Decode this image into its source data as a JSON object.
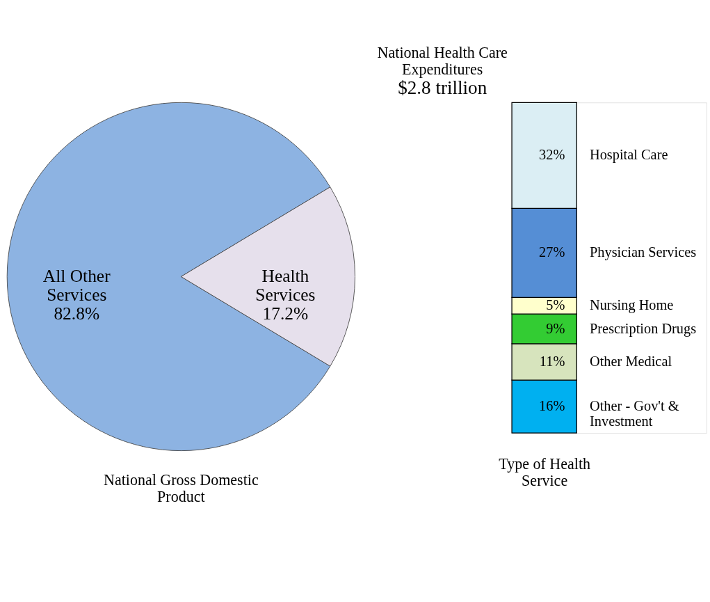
{
  "chart_data": [
    {
      "type": "pie",
      "xlabel": "National Gross Domestic Product",
      "categories": [
        "All Other Services",
        "Health Services"
      ],
      "values": [
        82.8,
        17.2
      ],
      "value_labels": [
        "82.8%",
        "17.2%"
      ],
      "colors": [
        "#8db3e2",
        "#e6e0ec"
      ],
      "legend": false
    },
    {
      "type": "bar",
      "title": "National Health Care Expenditures",
      "subtitle": "$2.8 trillion",
      "xlabel": "Type of Health Service",
      "stacked": true,
      "categories": [
        null
      ],
      "legend": false,
      "series": [
        {
          "name": "Other - Gov't & Investment",
          "color": "#00b0f0",
          "values": [
            16
          ],
          "value_labels": [
            "16%"
          ]
        },
        {
          "name": "Other Medical",
          "color": "#d7e4bd",
          "values": [
            11
          ],
          "value_labels": [
            "11%"
          ]
        },
        {
          "name": "Prescription Drugs",
          "color": "#33cc33",
          "values": [
            9
          ],
          "value_labels": [
            "9%"
          ]
        },
        {
          "name": "Nursing Home",
          "color": "#ffffcc",
          "values": [
            5
          ],
          "value_labels": [
            "5%"
          ]
        },
        {
          "name": "Physician Services",
          "color": "#558ed5",
          "values": [
            27
          ],
          "value_labels": [
            "27%"
          ]
        },
        {
          "name": "Hospital Care",
          "color": "#dbeef4",
          "values": [
            32
          ],
          "value_labels": [
            "32%"
          ]
        }
      ]
    }
  ]
}
